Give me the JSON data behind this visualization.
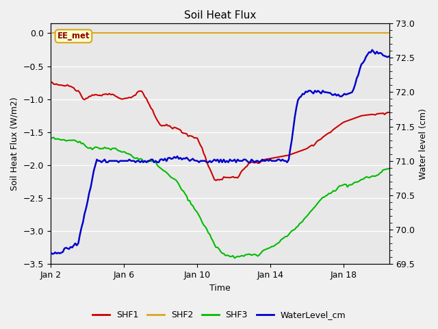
{
  "title": "Soil Heat Flux",
  "xlabel": "Time",
  "ylabel_left": "Soil Heat Flux (W/m2)",
  "ylabel_right": "Water level (cm)",
  "xlim": [
    0,
    18.5
  ],
  "ylim_left": [
    -3.5,
    0.15
  ],
  "ylim_right": [
    69.5,
    73.0
  ],
  "xtick_positions": [
    0,
    4,
    8,
    12,
    16
  ],
  "xtick_labels": [
    "Jan 2",
    "Jan 6",
    "Jan 10",
    "Jan 14",
    "Jan 18"
  ],
  "ytick_left": [
    0.0,
    -0.5,
    -1.0,
    -1.5,
    -2.0,
    -2.5,
    -3.0,
    -3.5
  ],
  "ytick_right": [
    73.0,
    72.5,
    72.0,
    71.5,
    71.0,
    70.5,
    70.0,
    69.5
  ],
  "fig_bg_color": "#f0f0f0",
  "plot_bg_color": "#e8e8e8",
  "shf2_color": "#DAA520",
  "shf1_color": "#cc0000",
  "shf3_color": "#00bb00",
  "water_color": "#0000cc",
  "annotation_label": "EE_met",
  "annotation_box_color": "#ffffcc",
  "annotation_border_color": "#DAA520",
  "annotation_text_color": "#8b0000",
  "legend_entries": [
    "SHF1",
    "SHF2",
    "SHF3",
    "WaterLevel_cm"
  ],
  "grid_color": "#ffffff",
  "linewidth": 1.5
}
